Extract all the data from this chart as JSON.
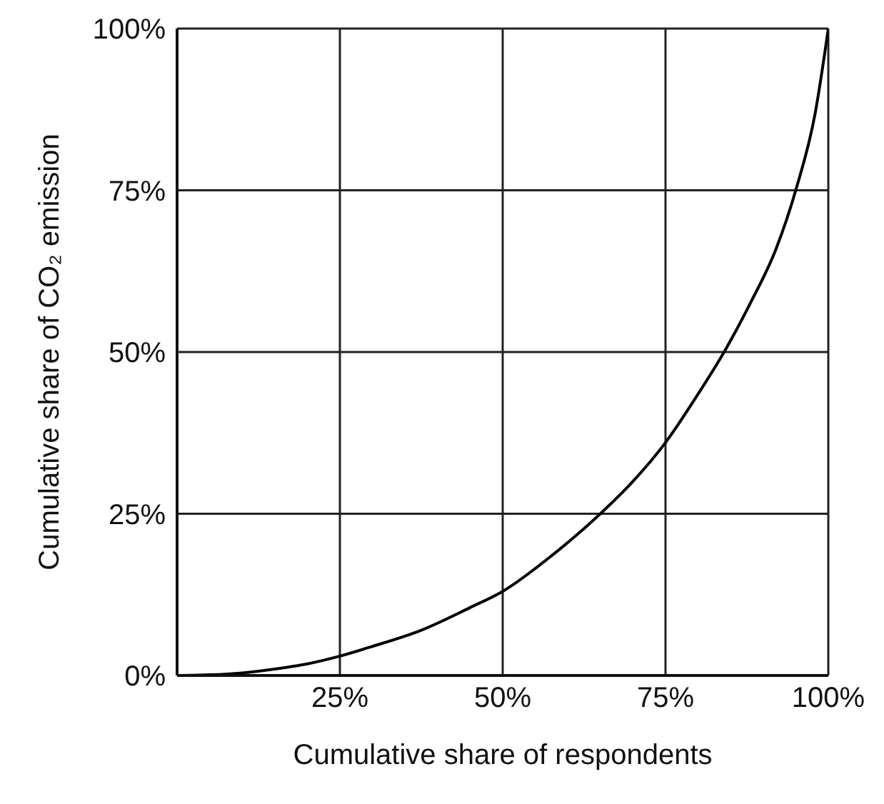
{
  "chart_data": {
    "type": "line",
    "xlabel": "Cumulative share of respondents",
    "ylabel": "Cumulative share of CO₂ emission",
    "x": [
      0,
      5,
      10,
      15,
      20,
      25,
      30,
      37.5,
      45,
      50,
      57.5,
      65,
      70,
      75,
      80,
      84,
      88,
      92,
      95,
      98,
      100
    ],
    "series": [
      {
        "color": "#000000",
        "values": [
          0,
          0.1,
          0.4,
          1,
          1.8,
          3,
          4.5,
          7,
          10.5,
          13,
          18.5,
          25,
          30,
          36,
          43.5,
          50,
          57.5,
          66,
          75,
          87,
          100
        ]
      }
    ],
    "xlim": [
      0,
      100
    ],
    "ylim": [
      0,
      100
    ],
    "xticks": [
      {
        "value": 0,
        "label": null
      },
      {
        "value": 25,
        "label": "25%"
      },
      {
        "value": 50,
        "label": "50%"
      },
      {
        "value": 75,
        "label": "75%"
      },
      {
        "value": 100,
        "label": "100%"
      }
    ],
    "yticks": [
      {
        "value": 0,
        "label": "0%"
      },
      {
        "value": 25,
        "label": "25%"
      },
      {
        "value": 50,
        "label": "50%"
      },
      {
        "value": 75,
        "label": "75%"
      },
      {
        "value": 100,
        "label": "100%"
      }
    ],
    "grid": true,
    "legend": false,
    "marker": "none",
    "line_style": "solid"
  }
}
